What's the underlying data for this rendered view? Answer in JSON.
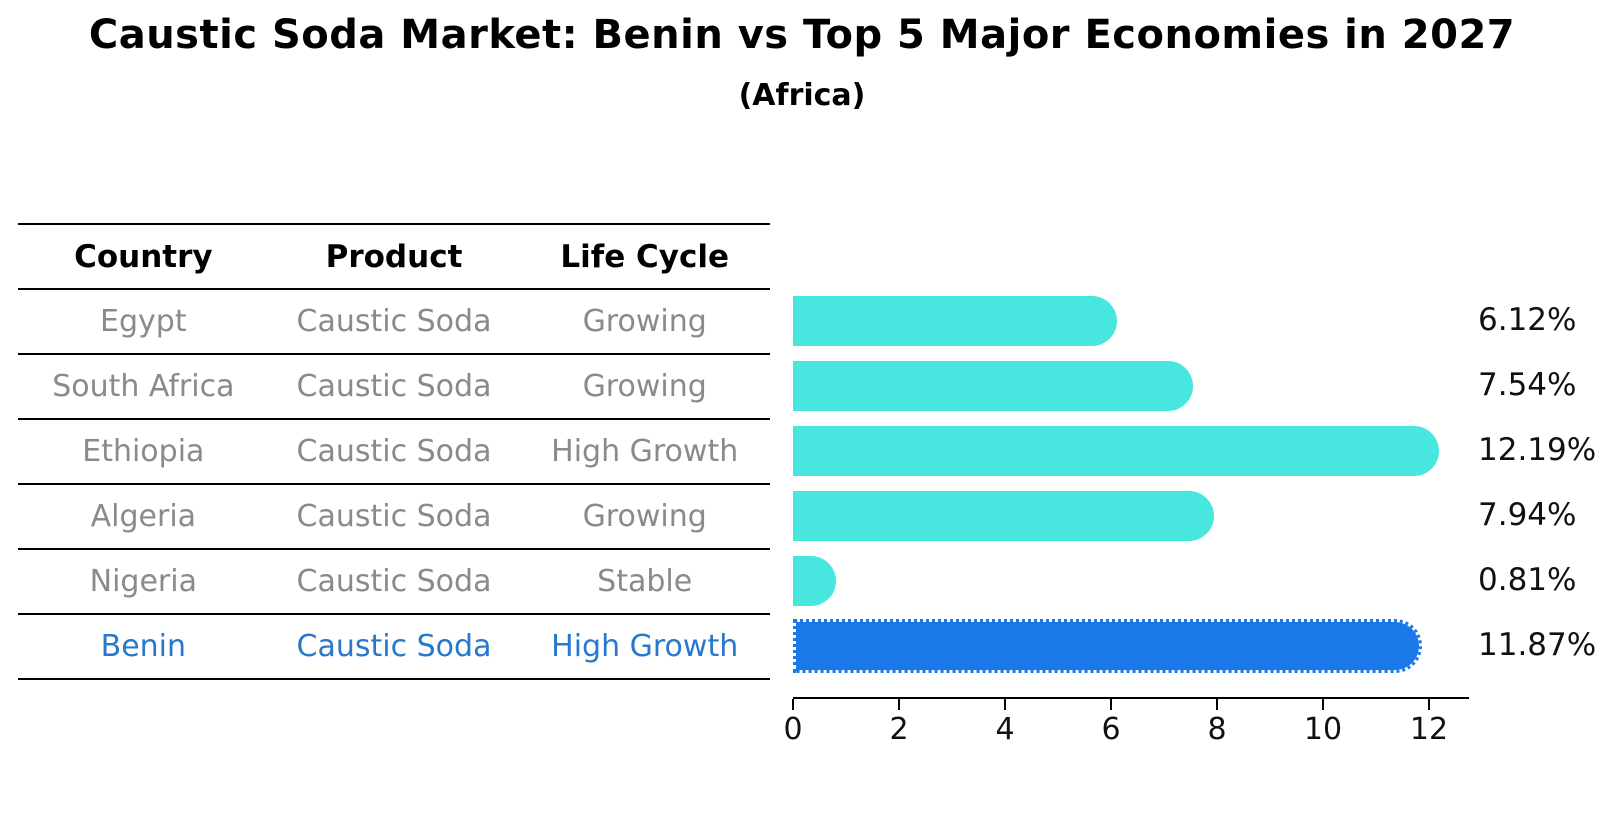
{
  "title": "Caustic Soda Market: Benin vs Top 5 Major Economies in 2027",
  "subtitle": "(Africa)",
  "table": {
    "headers": [
      "Country",
      "Product",
      "Life Cycle"
    ],
    "rows": [
      {
        "country": "Egypt",
        "product": "Caustic Soda",
        "life_cycle": "Growing",
        "highlight": false
      },
      {
        "country": "South Africa",
        "product": "Caustic Soda",
        "life_cycle": "Growing",
        "highlight": false
      },
      {
        "country": "Ethiopia",
        "product": "Caustic Soda",
        "life_cycle": "High Growth",
        "highlight": false
      },
      {
        "country": "Algeria",
        "product": "Caustic Soda",
        "life_cycle": "Growing",
        "highlight": false
      },
      {
        "country": "Nigeria",
        "product": "Caustic Soda",
        "life_cycle": "Stable",
        "highlight": false
      },
      {
        "country": "Benin",
        "product": "Caustic Soda",
        "life_cycle": "High Growth",
        "highlight": true
      }
    ]
  },
  "chart_data": {
    "type": "bar",
    "orientation": "horizontal",
    "title": "Caustic Soda Market: Benin vs Top 5 Major Economies in 2027",
    "subtitle": "(Africa)",
    "categories": [
      "Egypt",
      "South Africa",
      "Ethiopia",
      "Algeria",
      "Nigeria",
      "Benin"
    ],
    "values": [
      6.12,
      7.54,
      12.19,
      7.94,
      0.81,
      11.87
    ],
    "value_labels": [
      "6.12%",
      "7.54%",
      "12.19%",
      "7.94%",
      "0.81%",
      "11.87%"
    ],
    "xlabel": "",
    "ylabel": "",
    "xlim": [
      0,
      12.75
    ],
    "x_ticks": [
      0,
      2,
      4,
      6,
      8,
      10,
      12
    ],
    "grid": false,
    "legend": false,
    "highlight_index": 5,
    "colors": {
      "bar": "#47E7E0",
      "highlight_bar": "#1A78E8",
      "highlight_text": "#2878CC",
      "table_text": "#8a8a8a",
      "axis": "#000000"
    }
  }
}
